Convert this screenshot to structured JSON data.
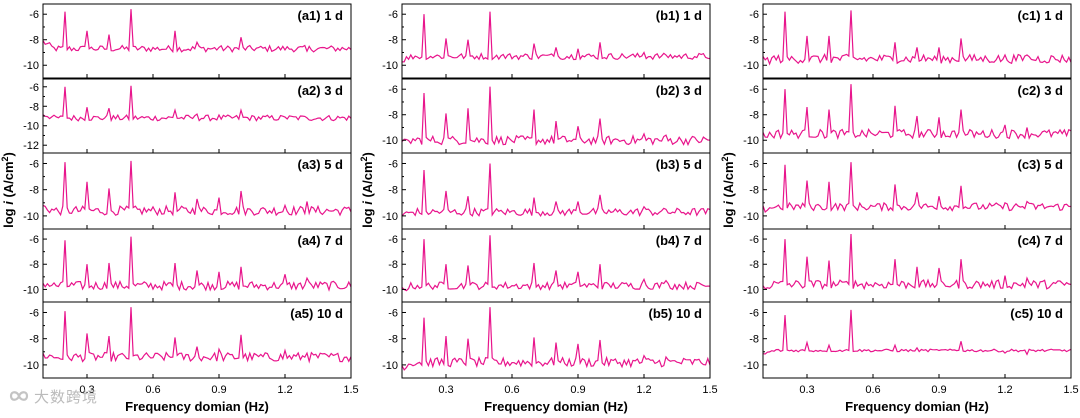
{
  "chart_data": {
    "type": "line",
    "layout": "3 columns x 5 rows of stacked spectra",
    "line_color": "#e8158c",
    "xlabel": "Frequency domian (Hz)",
    "xlim": [
      0.1,
      1.5
    ],
    "xticks": [
      "0.3",
      "0.6",
      "0.9",
      "1.2",
      "1.5"
    ],
    "xtick_values": [
      0.3,
      0.6,
      0.9,
      1.2,
      1.5
    ],
    "ylabel_parts": {
      "prefix": "log ",
      "var": "i",
      "mid": " (A/cm",
      "sup": "2",
      "suffix": ")"
    },
    "ylim": [
      -11,
      -5.2
    ],
    "ylim_extended": [
      -12.8,
      -5.2
    ],
    "yticks": [
      -6,
      -8,
      -10
    ],
    "yticks_extended": [
      -6,
      -8,
      -10,
      -12
    ],
    "yticks_extended_labels": [
      "-6",
      "-8",
      "-10",
      "-12"
    ],
    "peak_frequencies_hz": [
      0.2,
      0.3,
      0.4,
      0.5,
      0.7,
      0.8,
      0.9,
      1.0,
      1.2,
      1.3
    ],
    "panels": [
      {
        "label": "(a1) 1 d",
        "baseline": -8.7,
        "drop": -1.1,
        "noise": 0.25,
        "peaks": [
          -5.8,
          -7.3,
          -7.6,
          -5.6,
          -7.3,
          -8.2,
          -8.6,
          -7.8,
          -8.8,
          -8.9
        ]
      },
      {
        "label": "(a2) 3 d",
        "baseline": -9.2,
        "drop": -0.8,
        "noise": 0.3,
        "extended": true,
        "peaks": [
          -6.0,
          -8.1,
          -8.2,
          -5.9,
          -8.4,
          -8.8,
          -8.9,
          -8.4,
          -9.1,
          -9.2
        ]
      },
      {
        "label": "(a3) 5 d",
        "baseline": -9.6,
        "drop": -0.6,
        "noise": 0.35,
        "peaks": [
          -5.9,
          -7.4,
          -7.9,
          -5.8,
          -8.2,
          -8.7,
          -8.6,
          -8.1,
          -9.2,
          -8.9
        ]
      },
      {
        "label": "(a4) 7 d",
        "baseline": -9.7,
        "drop": -0.4,
        "noise": 0.35,
        "peaks": [
          -6.1,
          -8.0,
          -7.9,
          -5.8,
          -7.9,
          -8.5,
          -8.6,
          -8.2,
          -8.8,
          -9.1
        ]
      },
      {
        "label": "(a5) 10 d",
        "baseline": -9.4,
        "drop": -0.3,
        "noise": 0.35,
        "peaks": [
          -5.9,
          -7.6,
          -7.8,
          -5.6,
          -7.9,
          -8.6,
          -8.8,
          -7.7,
          -8.9,
          -9.1
        ]
      },
      {
        "label": "(b1) 1 d",
        "baseline": -9.3,
        "drop": 0.6,
        "noise": 0.25,
        "peaks": [
          -6.0,
          -7.9,
          -8.0,
          -5.8,
          -8.3,
          -8.6,
          -8.7,
          -8.2,
          -9.0,
          -9.2
        ]
      },
      {
        "label": "(b2) 3 d",
        "baseline": -10.0,
        "drop": 0.6,
        "noise": 0.35,
        "peaks": [
          -6.3,
          -7.9,
          -7.5,
          -5.8,
          -7.6,
          -8.5,
          -8.9,
          -8.3,
          -9.5,
          -9.6
        ]
      },
      {
        "label": "(b3) 5 d",
        "baseline": -9.7,
        "drop": 0.5,
        "noise": 0.3,
        "peaks": [
          -6.5,
          -8.1,
          -8.5,
          -6.0,
          -8.6,
          -8.9,
          -8.9,
          -8.4,
          -9.3,
          -9.5
        ]
      },
      {
        "label": "(b4) 7 d",
        "baseline": -9.7,
        "drop": 0.5,
        "noise": 0.3,
        "peaks": [
          -6.0,
          -8.0,
          -8.1,
          -5.7,
          -7.9,
          -8.5,
          -8.6,
          -8.0,
          -9.2,
          -9.3
        ]
      },
      {
        "label": "(b5) 10 d",
        "baseline": -9.8,
        "drop": 0.6,
        "noise": 0.35,
        "peaks": [
          -6.4,
          -7.8,
          -8.0,
          -5.6,
          -7.9,
          -8.3,
          -8.4,
          -8.1,
          -9.3,
          -9.4
        ]
      },
      {
        "label": "(c1) 1 d",
        "baseline": -9.5,
        "drop": 0.3,
        "noise": 0.35,
        "peaks": [
          -5.8,
          -7.7,
          -7.7,
          -5.7,
          -8.2,
          -8.6,
          -8.6,
          -7.9,
          -9.2,
          -9.2
        ]
      },
      {
        "label": "(c2) 3 d",
        "baseline": -9.5,
        "drop": 0.3,
        "noise": 0.35,
        "peaks": [
          -6.0,
          -7.4,
          -7.6,
          -5.6,
          -7.3,
          -8.1,
          -8.2,
          -7.6,
          -8.8,
          -9.0
        ]
      },
      {
        "label": "(c3) 5 d",
        "baseline": -9.3,
        "drop": 0.4,
        "noise": 0.3,
        "peaks": [
          -6.1,
          -7.3,
          -7.4,
          -5.9,
          -7.6,
          -8.2,
          -8.5,
          -7.7,
          -9.0,
          -8.9
        ]
      },
      {
        "label": "(c4) 7 d",
        "baseline": -9.6,
        "drop": 0.3,
        "noise": 0.35,
        "peaks": [
          -6.0,
          -7.4,
          -7.7,
          -5.6,
          -7.6,
          -8.2,
          -8.3,
          -7.6,
          -8.9,
          -9.1
        ]
      },
      {
        "label": "(c5) 10 d",
        "baseline": -8.9,
        "drop": 0.6,
        "noise": 0.1,
        "peaks": [
          -6.2,
          -8.3,
          -8.5,
          -5.8,
          -8.5,
          -8.7,
          -8.9,
          -8.2,
          -9.1,
          -9.2
        ]
      }
    ]
  },
  "watermark": {
    "text": "大数跨境",
    "logo": "infinity-logo-icon"
  }
}
